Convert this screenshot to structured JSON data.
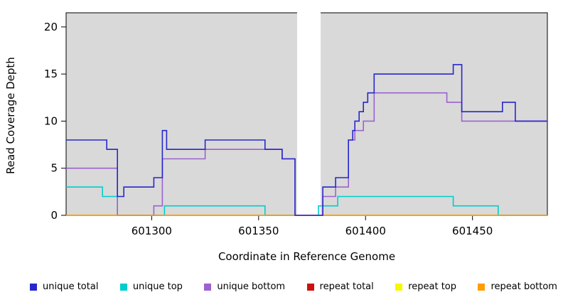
{
  "chart_data": {
    "type": "line",
    "style": "step-post",
    "title": "",
    "xlabel": "Coordinate in Reference Genome",
    "ylabel": "Read Coverage Depth",
    "xlim": [
      601260,
      601485
    ],
    "ylim": [
      0,
      21.5
    ],
    "xticks": [
      601300,
      601350,
      601400,
      601450
    ],
    "yticks": [
      0,
      5,
      10,
      15,
      20
    ],
    "grid": false,
    "plot_bg": "#d9d9d9",
    "border_color": "#000000",
    "gap_region": {
      "x0": 601368,
      "x1": 601379,
      "color": "#ffffff"
    },
    "legend_position": "bottom",
    "series": [
      {
        "name": "unique total",
        "color": "#2727cc",
        "points": [
          [
            601260,
            8
          ],
          [
            601279,
            7
          ],
          [
            601284,
            2
          ],
          [
            601287,
            3
          ],
          [
            601301,
            4
          ],
          [
            601305,
            9
          ],
          [
            601307,
            7
          ],
          [
            601325,
            8
          ],
          [
            601353,
            7
          ],
          [
            601361,
            6
          ],
          [
            601367,
            0
          ],
          [
            601380,
            3
          ],
          [
            601386,
            4
          ],
          [
            601392,
            8
          ],
          [
            601394,
            9
          ],
          [
            601395,
            10
          ],
          [
            601397,
            11
          ],
          [
            601399,
            12
          ],
          [
            601401,
            13
          ],
          [
            601404,
            15
          ],
          [
            601441,
            16
          ],
          [
            601445,
            11
          ],
          [
            601464,
            12
          ],
          [
            601470,
            10
          ]
        ]
      },
      {
        "name": "unique top",
        "color": "#00cdcd",
        "points": [
          [
            601260,
            3
          ],
          [
            601277,
            2
          ],
          [
            601284,
            0
          ],
          [
            601306,
            1
          ],
          [
            601353,
            0
          ],
          [
            601378,
            1
          ],
          [
            601387,
            2
          ],
          [
            601441,
            1
          ],
          [
            601462,
            0
          ]
        ]
      },
      {
        "name": "unique bottom",
        "color": "#9b62d0",
        "points": [
          [
            601260,
            5
          ],
          [
            601284,
            0
          ],
          [
            601301,
            1
          ],
          [
            601305,
            6
          ],
          [
            601325,
            7
          ],
          [
            601361,
            6
          ],
          [
            601367,
            0
          ],
          [
            601380,
            2
          ],
          [
            601386,
            3
          ],
          [
            601392,
            8
          ],
          [
            601395,
            9
          ],
          [
            601399,
            10
          ],
          [
            601404,
            13
          ],
          [
            601438,
            12
          ],
          [
            601445,
            10
          ]
        ]
      },
      {
        "name": "repeat total",
        "color": "#cc1111",
        "points": [
          [
            601260,
            0
          ]
        ]
      },
      {
        "name": "repeat top",
        "color": "#f7f700",
        "points": [
          [
            601260,
            0
          ]
        ]
      },
      {
        "name": "repeat bottom",
        "color": "#ff9d00",
        "points": [
          [
            601260,
            0
          ]
        ]
      }
    ],
    "draw_order": [
      3,
      4,
      1,
      2,
      5,
      0
    ]
  }
}
